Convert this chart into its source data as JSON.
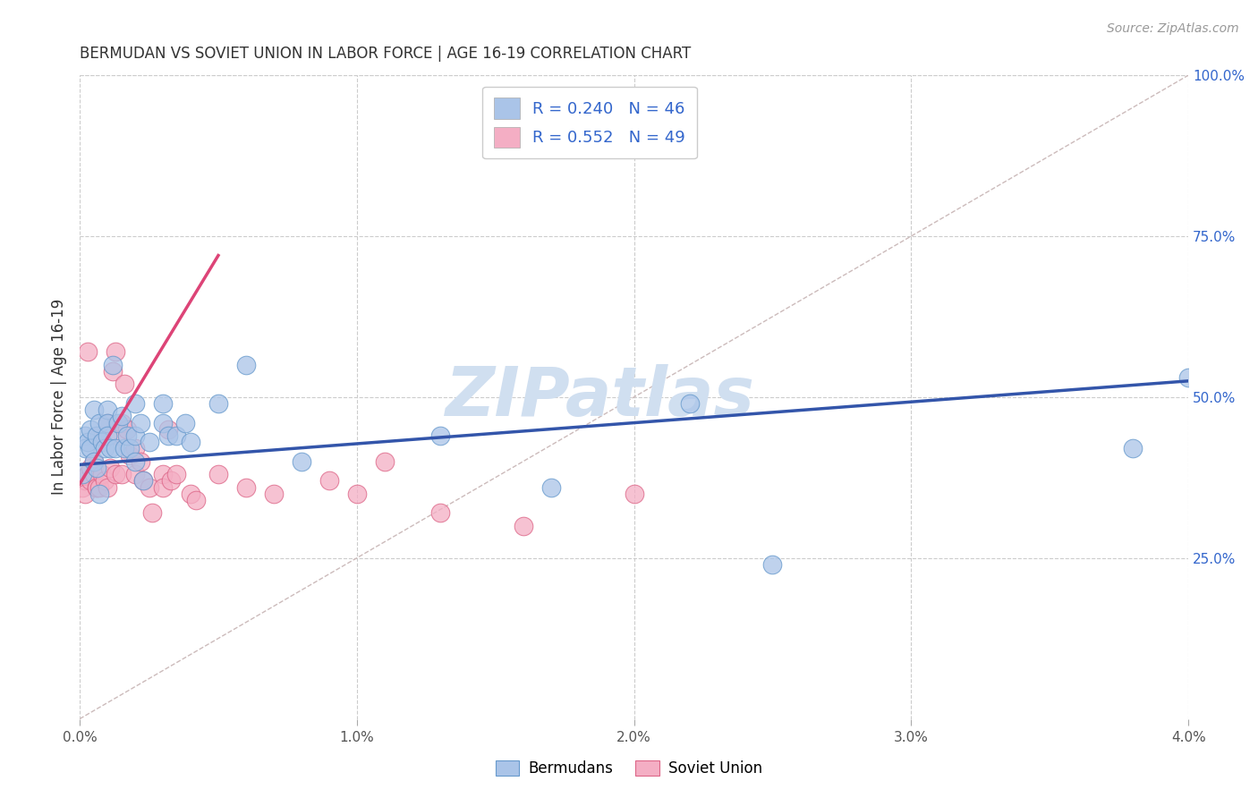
{
  "title": "BERMUDAN VS SOVIET UNION IN LABOR FORCE | AGE 16-19 CORRELATION CHART",
  "source": "Source: ZipAtlas.com",
  "ylabel": "In Labor Force | Age 16-19",
  "xlim": [
    0.0,
    0.04
  ],
  "ylim": [
    0.0,
    1.0
  ],
  "xtick_labels": [
    "0.0%",
    "1.0%",
    "2.0%",
    "3.0%",
    "4.0%"
  ],
  "xtick_vals": [
    0.0,
    0.01,
    0.02,
    0.03,
    0.04
  ],
  "ytick_labels_right": [
    "25.0%",
    "50.0%",
    "75.0%",
    "100.0%"
  ],
  "ytick_vals_right": [
    0.25,
    0.5,
    0.75,
    1.0
  ],
  "bermudans_color": "#aac4e8",
  "soviet_color": "#f4aec4",
  "bermudans_edge": "#6699cc",
  "soviet_edge": "#dd6688",
  "trendline_bermudans_color": "#3355aa",
  "trendline_soviet_color": "#dd4477",
  "diagonal_color": "#ccbbbb",
  "watermark": "ZIPatlas",
  "watermark_color": "#d0dff0",
  "background_color": "#ffffff",
  "grid_color": "#cccccc",
  "legend_text_color": "#3366cc",
  "legend_r_color": "#3366cc",
  "legend_n_color": "#3366cc",
  "bermudans_x": [
    0.0001,
    0.0002,
    0.0002,
    0.0003,
    0.0004,
    0.0004,
    0.0005,
    0.0005,
    0.0006,
    0.0006,
    0.0007,
    0.0007,
    0.0008,
    0.0009,
    0.001,
    0.001,
    0.001,
    0.0011,
    0.0012,
    0.0013,
    0.0014,
    0.0015,
    0.0016,
    0.0017,
    0.0018,
    0.002,
    0.002,
    0.002,
    0.0022,
    0.0023,
    0.0025,
    0.003,
    0.003,
    0.0032,
    0.0035,
    0.0038,
    0.004,
    0.005,
    0.006,
    0.008,
    0.013,
    0.017,
    0.022,
    0.025,
    0.038,
    0.04
  ],
  "bermudans_y": [
    0.38,
    0.44,
    0.42,
    0.43,
    0.42,
    0.45,
    0.4,
    0.48,
    0.44,
    0.39,
    0.46,
    0.35,
    0.43,
    0.42,
    0.48,
    0.46,
    0.44,
    0.42,
    0.55,
    0.42,
    0.46,
    0.47,
    0.42,
    0.44,
    0.42,
    0.44,
    0.49,
    0.4,
    0.46,
    0.37,
    0.43,
    0.46,
    0.49,
    0.44,
    0.44,
    0.46,
    0.43,
    0.49,
    0.55,
    0.4,
    0.44,
    0.36,
    0.49,
    0.24,
    0.42,
    0.53
  ],
  "soviet_x": [
    0.0001,
    0.0002,
    0.0002,
    0.0003,
    0.0003,
    0.0004,
    0.0004,
    0.0005,
    0.0005,
    0.0006,
    0.0006,
    0.0007,
    0.0007,
    0.0008,
    0.0009,
    0.001,
    0.001,
    0.0011,
    0.0012,
    0.0013,
    0.0013,
    0.0014,
    0.0015,
    0.0015,
    0.0016,
    0.0017,
    0.0018,
    0.002,
    0.002,
    0.0022,
    0.0023,
    0.0025,
    0.0026,
    0.003,
    0.003,
    0.0032,
    0.0033,
    0.0035,
    0.004,
    0.0042,
    0.005,
    0.006,
    0.007,
    0.009,
    0.01,
    0.011,
    0.013,
    0.016,
    0.02
  ],
  "soviet_y": [
    0.36,
    0.37,
    0.35,
    0.57,
    0.38,
    0.39,
    0.37,
    0.38,
    0.4,
    0.36,
    0.36,
    0.44,
    0.36,
    0.38,
    0.37,
    0.36,
    0.46,
    0.39,
    0.54,
    0.38,
    0.57,
    0.44,
    0.46,
    0.38,
    0.52,
    0.45,
    0.41,
    0.38,
    0.42,
    0.4,
    0.37,
    0.36,
    0.32,
    0.38,
    0.36,
    0.45,
    0.37,
    0.38,
    0.35,
    0.34,
    0.38,
    0.36,
    0.35,
    0.37,
    0.35,
    0.4,
    0.32,
    0.3,
    0.35
  ],
  "trendline_bermudans": {
    "x": [
      0.0,
      0.04
    ],
    "y": [
      0.395,
      0.525
    ]
  },
  "trendline_soviet": {
    "x": [
      0.0,
      0.005
    ],
    "y": [
      0.365,
      0.72
    ]
  },
  "diagonal": {
    "x": [
      0.0,
      0.04
    ],
    "y": [
      0.0,
      1.0
    ]
  }
}
